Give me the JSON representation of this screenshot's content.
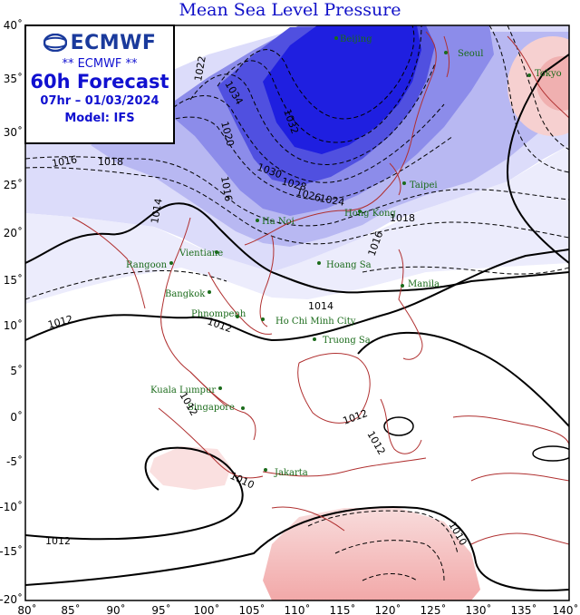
{
  "title": "Mean Sea Level Pressure",
  "infobox": {
    "logo": "ECMWF",
    "source": "** ECMWF **",
    "forecast": "60h Forecast",
    "valid": "07hr – 01/03/2024",
    "model": "Model: IFS"
  },
  "axes": {
    "lon_ticks": [
      "80˚",
      "85˚",
      "90˚",
      "95˚",
      "100˚",
      "105˚",
      "110˚",
      "115˚",
      "120˚",
      "125˚",
      "130˚",
      "135˚",
      "140˚"
    ],
    "lat_ticks": [
      "40˚",
      "35˚",
      "30˚",
      "25˚",
      "20˚",
      "15˚",
      "10˚",
      "5˚",
      "0˚",
      "-5˚",
      "-10˚",
      "-15˚",
      "-20˚"
    ]
  },
  "cities": [
    {
      "name": "Beijing"
    },
    {
      "name": "Seoul"
    },
    {
      "name": "Tokyo"
    },
    {
      "name": "Taipei"
    },
    {
      "name": "Hong Kong"
    },
    {
      "name": "Ha Noi"
    },
    {
      "name": "Vientiane"
    },
    {
      "name": "Rangoon"
    },
    {
      "name": "Bangkok"
    },
    {
      "name": "Phnompenh"
    },
    {
      "name": "Ho Chi Minh City"
    },
    {
      "name": "Hoang Sa"
    },
    {
      "name": "Truong Sa"
    },
    {
      "name": "Manila"
    },
    {
      "name": "Kuala Lumpur"
    },
    {
      "name": "Singapore"
    },
    {
      "name": "Jakarta"
    }
  ],
  "contour_labels": [
    "1034",
    "1032",
    "1030",
    "1028",
    "1026",
    "1024",
    "1022",
    "1020",
    "1018",
    "1016",
    "1014",
    "1012",
    "1010"
  ],
  "colors": {
    "high": "#1a1ae6",
    "mid": "#8a8af0",
    "low": "#e6e6fb",
    "lowpressure": "#f4c4c4",
    "coast": "#b03030",
    "title": "#1010c8",
    "city": "#1a6b1a"
  }
}
